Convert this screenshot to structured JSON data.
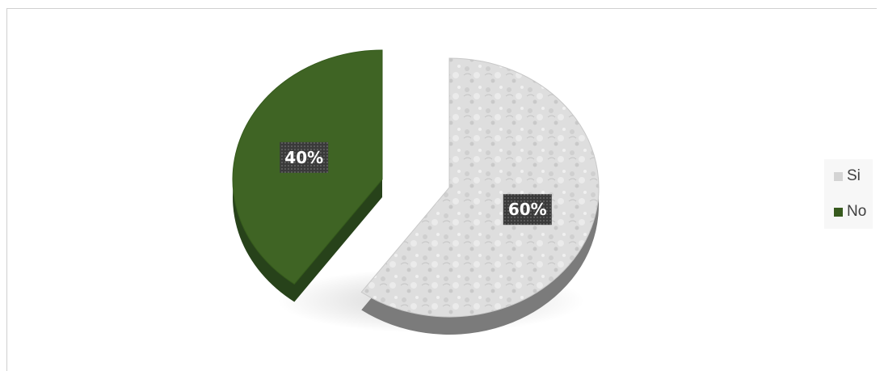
{
  "chart_data": {
    "type": "pie",
    "title": "",
    "categories": [
      "Si",
      "No"
    ],
    "values": [
      60,
      40
    ],
    "data_labels": [
      "60%",
      "40%"
    ],
    "colors": {
      "Si": "#dcdcdc",
      "No": "#3f6424"
    },
    "legend_position": "right",
    "style": "3d-exploded"
  },
  "legend": {
    "items": [
      {
        "label": "Si",
        "color": "#d4d4d4"
      },
      {
        "label": "No",
        "color": "#375a1e"
      }
    ]
  }
}
